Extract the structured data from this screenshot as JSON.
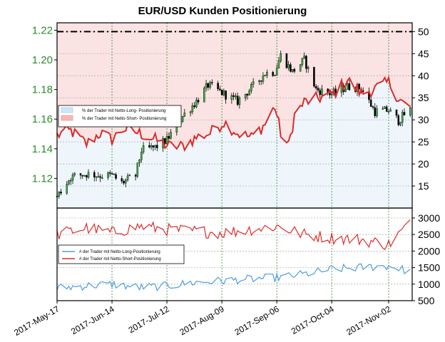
{
  "chart_data": [
    {
      "type": "candlestick+line",
      "title": "EUR/USD Kunden Positionierung",
      "price_axis": {
        "ticks": [
          1.12,
          1.14,
          1.16,
          1.18,
          1.2,
          1.22
        ],
        "range": [
          1.1,
          1.225
        ]
      },
      "pct_axis": {
        "ticks": [
          15,
          20,
          25,
          30,
          35,
          40,
          45,
          50
        ],
        "range": [
          10,
          52
        ]
      },
      "threshold_line": 50,
      "legend": {
        "placement": "left",
        "entries": [
          {
            "label": "% der Trader mit Netto-Long- Positionierung",
            "color": "#cfe6f7"
          },
          {
            "label": "% der Trader mit Netto-Short- Positionierung",
            "color": "#f7b7b7"
          }
        ]
      },
      "price_anchors": [
        {
          "x": "2017-05-17",
          "y": 1.108
        },
        {
          "x": "2017-05-24",
          "y": 1.121
        },
        {
          "x": "2017-06-01",
          "y": 1.123
        },
        {
          "x": "2017-06-08",
          "y": 1.122
        },
        {
          "x": "2017-06-14",
          "y": 1.122
        },
        {
          "x": "2017-06-19",
          "y": 1.117
        },
        {
          "x": "2017-06-26",
          "y": 1.122
        },
        {
          "x": "2017-06-29",
          "y": 1.139
        },
        {
          "x": "2017-07-06",
          "y": 1.141
        },
        {
          "x": "2017-07-12",
          "y": 1.146
        },
        {
          "x": "2017-07-20",
          "y": 1.162
        },
        {
          "x": "2017-07-27",
          "y": 1.172
        },
        {
          "x": "2017-08-02",
          "y": 1.183
        },
        {
          "x": "2017-08-10",
          "y": 1.177
        },
        {
          "x": "2017-08-17",
          "y": 1.172
        },
        {
          "x": "2017-08-24",
          "y": 1.181
        },
        {
          "x": "2017-08-31",
          "y": 1.191
        },
        {
          "x": "2017-09-05",
          "y": 1.192
        },
        {
          "x": "2017-09-08",
          "y": 1.203
        },
        {
          "x": "2017-09-14",
          "y": 1.192
        },
        {
          "x": "2017-09-20",
          "y": 1.2
        },
        {
          "x": "2017-09-26",
          "y": 1.18
        },
        {
          "x": "2017-10-04",
          "y": 1.177
        },
        {
          "x": "2017-10-12",
          "y": 1.182
        },
        {
          "x": "2017-10-19",
          "y": 1.181
        },
        {
          "x": "2017-10-26",
          "y": 1.165
        },
        {
          "x": "2017-11-02",
          "y": 1.166
        },
        {
          "x": "2017-11-07",
          "y": 1.159
        },
        {
          "x": "2017-11-12",
          "y": 1.166
        }
      ],
      "short_pct_anchors": [
        {
          "x": "2017-05-17",
          "y": 26.5
        },
        {
          "x": "2017-05-24",
          "y": 27.5
        },
        {
          "x": "2017-06-01",
          "y": 24.5
        },
        {
          "x": "2017-06-08",
          "y": 27.0
        },
        {
          "x": "2017-06-14",
          "y": 25.5
        },
        {
          "x": "2017-06-20",
          "y": 28.0
        },
        {
          "x": "2017-06-28",
          "y": 27.0
        },
        {
          "x": "2017-07-06",
          "y": 25.5
        },
        {
          "x": "2017-07-13",
          "y": 24.0
        },
        {
          "x": "2017-07-20",
          "y": 24.0
        },
        {
          "x": "2017-07-27",
          "y": 26.0
        },
        {
          "x": "2017-08-03",
          "y": 27.0
        },
        {
          "x": "2017-08-10",
          "y": 29.5
        },
        {
          "x": "2017-08-17",
          "y": 27.0
        },
        {
          "x": "2017-08-24",
          "y": 26.0
        },
        {
          "x": "2017-08-31",
          "y": 29.0
        },
        {
          "x": "2017-09-05",
          "y": 33.0
        },
        {
          "x": "2017-09-08",
          "y": 27.0
        },
        {
          "x": "2017-09-12",
          "y": 24.0
        },
        {
          "x": "2017-09-15",
          "y": 31.0
        },
        {
          "x": "2017-09-20",
          "y": 34.0
        },
        {
          "x": "2017-09-28",
          "y": 35.0
        },
        {
          "x": "2017-10-05",
          "y": 36.0
        },
        {
          "x": "2017-10-12",
          "y": 39.0
        },
        {
          "x": "2017-10-19",
          "y": 36.0
        },
        {
          "x": "2017-10-26",
          "y": 37.0
        },
        {
          "x": "2017-11-02",
          "y": 38.5
        },
        {
          "x": "2017-11-07",
          "y": 35.0
        },
        {
          "x": "2017-11-12",
          "y": 32.5
        }
      ]
    },
    {
      "type": "line",
      "right_axis": {
        "ticks": [
          500,
          1000,
          1500,
          2000,
          2500,
          3000
        ],
        "range": [
          500,
          3300
        ]
      },
      "x_ticks": [
        "2017-May-17",
        "2017-Jun-14",
        "2017-Jul-12",
        "2017-Aug-09",
        "2017-Sep-06",
        "2017-Oct-04",
        "2017-Nov-02"
      ],
      "legend": {
        "placement": "left",
        "entries": [
          {
            "label": "# der Trader mit Netto-Long-Positionierung",
            "color": "#4d9de0"
          },
          {
            "label": "# der Trader mit Netto-Short-Positionierung",
            "color": "#dd2b2b"
          }
        ]
      },
      "series": [
        {
          "name": "# der Trader mit Netto-Long-Positionierung",
          "color": "#4d9de0",
          "anchors": [
            {
              "x": "2017-05-17",
              "y": 880
            },
            {
              "x": "2017-06-01",
              "y": 950
            },
            {
              "x": "2017-06-14",
              "y": 1000
            },
            {
              "x": "2017-06-28",
              "y": 900
            },
            {
              "x": "2017-07-12",
              "y": 950
            },
            {
              "x": "2017-07-26",
              "y": 1050
            },
            {
              "x": "2017-08-09",
              "y": 1100
            },
            {
              "x": "2017-08-23",
              "y": 1150
            },
            {
              "x": "2017-09-06",
              "y": 1200
            },
            {
              "x": "2017-09-20",
              "y": 1300
            },
            {
              "x": "2017-10-04",
              "y": 1450
            },
            {
              "x": "2017-10-18",
              "y": 1500
            },
            {
              "x": "2017-11-02",
              "y": 1550
            },
            {
              "x": "2017-11-12",
              "y": 1400
            }
          ]
        },
        {
          "name": "# der Trader mit Netto-Short-Positionierung",
          "color": "#dd2b2b",
          "anchors": [
            {
              "x": "2017-05-17",
              "y": 2500
            },
            {
              "x": "2017-06-01",
              "y": 2700
            },
            {
              "x": "2017-06-14",
              "y": 2550
            },
            {
              "x": "2017-06-28",
              "y": 2750
            },
            {
              "x": "2017-07-12",
              "y": 2650
            },
            {
              "x": "2017-07-26",
              "y": 2600
            },
            {
              "x": "2017-08-09",
              "y": 2550
            },
            {
              "x": "2017-08-23",
              "y": 2650
            },
            {
              "x": "2017-09-06",
              "y": 2750
            },
            {
              "x": "2017-09-20",
              "y": 2500
            },
            {
              "x": "2017-10-04",
              "y": 2400
            },
            {
              "x": "2017-10-18",
              "y": 2350
            },
            {
              "x": "2017-11-02",
              "y": 2200
            },
            {
              "x": "2017-11-12",
              "y": 2800
            }
          ]
        }
      ]
    }
  ]
}
